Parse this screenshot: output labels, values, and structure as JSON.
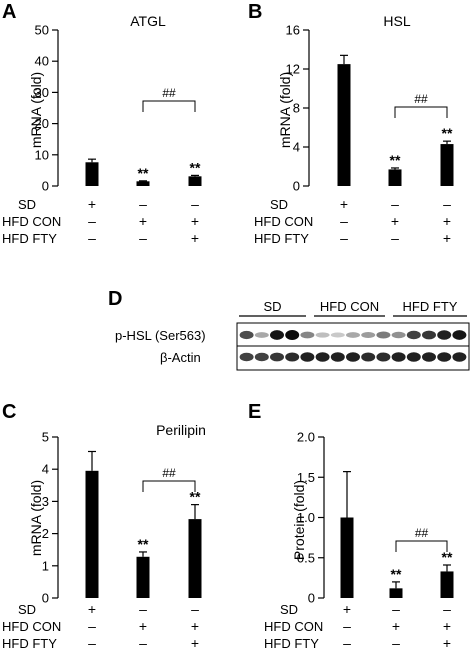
{
  "panels": {
    "A": "A",
    "B": "B",
    "C": "C",
    "D": "D",
    "E": "E"
  },
  "condition_labels": [
    "SD",
    "HFD CON",
    "HFD FTY"
  ],
  "condition_table": [
    [
      "+",
      "–",
      "–"
    ],
    [
      "–",
      "+",
      "+"
    ],
    [
      "–",
      "–",
      "+"
    ]
  ],
  "significance": {
    "vs_sd": "**",
    "vs_hfd_con": "##"
  },
  "chart_data": [
    {
      "id": "A",
      "type": "bar",
      "title": "ATGL",
      "ylabel": "mRNA (fold)",
      "ylim": [
        0,
        50
      ],
      "yticks": [
        0,
        10,
        20,
        30,
        40,
        50
      ],
      "categories": [
        "SD",
        "HFD CON",
        "HFD FTY"
      ],
      "values": [
        7.6,
        1.5,
        3.1
      ],
      "errors": [
        1.0,
        0.15,
        0.3
      ],
      "annotations": [
        "",
        "**",
        "**"
      ]
    },
    {
      "id": "B",
      "type": "bar",
      "title": "HSL",
      "ylabel": "mRNA (fold)",
      "ylim": [
        0,
        16
      ],
      "yticks": [
        0,
        4,
        8,
        12,
        16
      ],
      "categories": [
        "SD",
        "HFD CON",
        "HFD FTY"
      ],
      "values": [
        12.5,
        1.7,
        4.3
      ],
      "errors": [
        0.9,
        0.15,
        0.3
      ],
      "annotations": [
        "",
        "**",
        "**"
      ]
    },
    {
      "id": "C",
      "type": "bar",
      "title": "Perilipin",
      "ylabel": "mRNA (fold)",
      "ylim": [
        0,
        5
      ],
      "yticks": [
        0,
        1,
        2,
        3,
        4,
        5
      ],
      "categories": [
        "SD",
        "HFD CON",
        "HFD FTY"
      ],
      "values": [
        3.95,
        1.28,
        2.45
      ],
      "errors": [
        0.6,
        0.15,
        0.45
      ],
      "annotations": [
        "",
        "**",
        "**"
      ]
    },
    {
      "id": "E",
      "type": "bar",
      "title": "",
      "ylabel": "Protein (fold)",
      "ylim": [
        0,
        2.0
      ],
      "yticks": [
        "0",
        "0.5",
        "1.0",
        "1.5",
        "2.0"
      ],
      "categories": [
        "SD",
        "HFD CON",
        "HFD FTY"
      ],
      "values": [
        1.0,
        0.12,
        0.33
      ],
      "errors": [
        0.57,
        0.08,
        0.08
      ],
      "annotations": [
        "",
        "**",
        "**"
      ]
    }
  ],
  "blot": {
    "lane_groups": [
      "SD",
      "HFD CON",
      "HFD FTY"
    ],
    "rows": [
      {
        "label": "p-HSL (Ser563)",
        "intensities": [
          0.7,
          0.3,
          0.95,
          1.0,
          0.45,
          0.2,
          0.15,
          0.3,
          0.35,
          0.5,
          0.4,
          0.75,
          0.8,
          0.9,
          0.95
        ]
      },
      {
        "label": "β-Actin",
        "intensities": [
          0.75,
          0.75,
          0.8,
          0.85,
          0.9,
          0.9,
          0.9,
          0.9,
          0.85,
          0.85,
          0.9,
          0.9,
          0.9,
          0.9,
          0.9
        ]
      }
    ]
  }
}
